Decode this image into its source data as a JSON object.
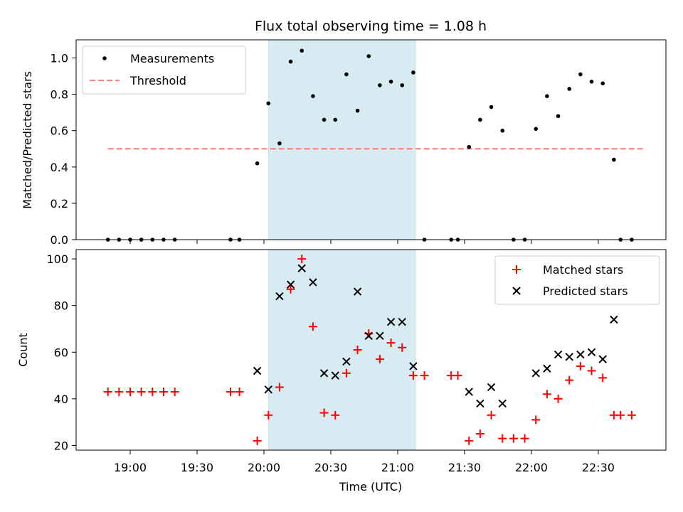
{
  "title": "Flux total observing time = 1.08 h",
  "chart_data": [
    {
      "type": "scatter",
      "ylabel": "Matched/Predicted stars",
      "ylim": [
        0,
        1.1
      ],
      "yticks": [
        0.0,
        0.2,
        0.4,
        0.6,
        0.8,
        1.0
      ],
      "ytick_labels": [
        "0.0",
        "0.2",
        "0.4",
        "0.6",
        "0.8",
        "1.0"
      ],
      "grid": false,
      "legend_position": "upper-left",
      "shaded_interval": [
        "20:02",
        "21:08"
      ],
      "series": [
        {
          "name": "Measurements",
          "marker": "dot",
          "color": "#000000",
          "x": [
            "18:50",
            "18:55",
            "19:00",
            "19:05",
            "19:10",
            "19:15",
            "19:20",
            "19:45",
            "19:49",
            "19:57",
            "20:02",
            "20:07",
            "20:12",
            "20:17",
            "20:22",
            "20:27",
            "20:32",
            "20:37",
            "20:42",
            "20:47",
            "20:52",
            "20:57",
            "21:02",
            "21:07",
            "21:12",
            "21:24",
            "21:27",
            "21:32",
            "21:37",
            "21:42",
            "21:47",
            "21:52",
            "21:57",
            "22:02",
            "22:07",
            "22:12",
            "22:17",
            "22:22",
            "22:27",
            "22:32",
            "22:37",
            "22:40",
            "22:45"
          ],
          "y": [
            0,
            0,
            0,
            0,
            0,
            0,
            0,
            0,
            0,
            0.42,
            0.75,
            0.53,
            0.98,
            1.04,
            0.79,
            0.66,
            0.66,
            0.91,
            0.71,
            1.01,
            0.85,
            0.87,
            0.85,
            0.92,
            0,
            0,
            0,
            0.51,
            0.66,
            0.73,
            0.6,
            0,
            0,
            0.61,
            0.79,
            0.68,
            0.83,
            0.91,
            0.87,
            0.86,
            0.44,
            0,
            0
          ]
        },
        {
          "name": "Threshold",
          "marker": "dashed-line",
          "color": "#f08080",
          "x": [
            "18:50",
            "22:50"
          ],
          "y": [
            0.5,
            0.5
          ]
        }
      ]
    },
    {
      "type": "scatter",
      "ylabel": "Count",
      "xlabel": "Time (UTC)",
      "ylim": [
        18,
        104
      ],
      "yticks": [
        20,
        40,
        60,
        80,
        100
      ],
      "xticks": [
        "19:00",
        "19:30",
        "20:00",
        "20:30",
        "21:00",
        "21:30",
        "22:00",
        "22:30"
      ],
      "grid": false,
      "legend_position": "upper-right",
      "shaded_interval": [
        "20:02",
        "21:08"
      ],
      "series": [
        {
          "name": "Matched stars",
          "marker": "plus",
          "color": "#ff0000",
          "x": [
            "18:50",
            "18:55",
            "19:00",
            "19:05",
            "19:10",
            "19:15",
            "19:20",
            "19:45",
            "19:49",
            "19:57",
            "20:02",
            "20:07",
            "20:12",
            "20:17",
            "20:22",
            "20:27",
            "20:32",
            "20:37",
            "20:42",
            "20:47",
            "20:52",
            "20:57",
            "21:02",
            "21:07",
            "21:12",
            "21:24",
            "21:27",
            "21:32",
            "21:37",
            "21:42",
            "21:47",
            "21:52",
            "21:57",
            "22:02",
            "22:07",
            "22:12",
            "22:17",
            "22:22",
            "22:27",
            "22:32",
            "22:37",
            "22:40",
            "22:45"
          ],
          "y": [
            43,
            43,
            43,
            43,
            43,
            43,
            43,
            43,
            43,
            22,
            33,
            45,
            87,
            100,
            71,
            34,
            33,
            51,
            61,
            68,
            57,
            64,
            62,
            50,
            50,
            50,
            50,
            22,
            25,
            33,
            23,
            23,
            23,
            31,
            42,
            40,
            48,
            54,
            52,
            49,
            33,
            33,
            33
          ]
        },
        {
          "name": "Predicted stars",
          "marker": "x",
          "color": "#000000",
          "x": [
            "19:57",
            "20:02",
            "20:07",
            "20:12",
            "20:17",
            "20:22",
            "20:27",
            "20:32",
            "20:37",
            "20:42",
            "20:47",
            "20:52",
            "20:57",
            "21:02",
            "21:07",
            "21:32",
            "21:37",
            "21:42",
            "21:47",
            "22:02",
            "22:07",
            "22:12",
            "22:17",
            "22:22",
            "22:27",
            "22:32",
            "22:37"
          ],
          "y": [
            52,
            44,
            84,
            89,
            96,
            90,
            51,
            50,
            56,
            86,
            67,
            67,
            73,
            73,
            54,
            43,
            38,
            45,
            38,
            51,
            53,
            59,
            58,
            59,
            60,
            57,
            74
          ]
        }
      ]
    }
  ]
}
